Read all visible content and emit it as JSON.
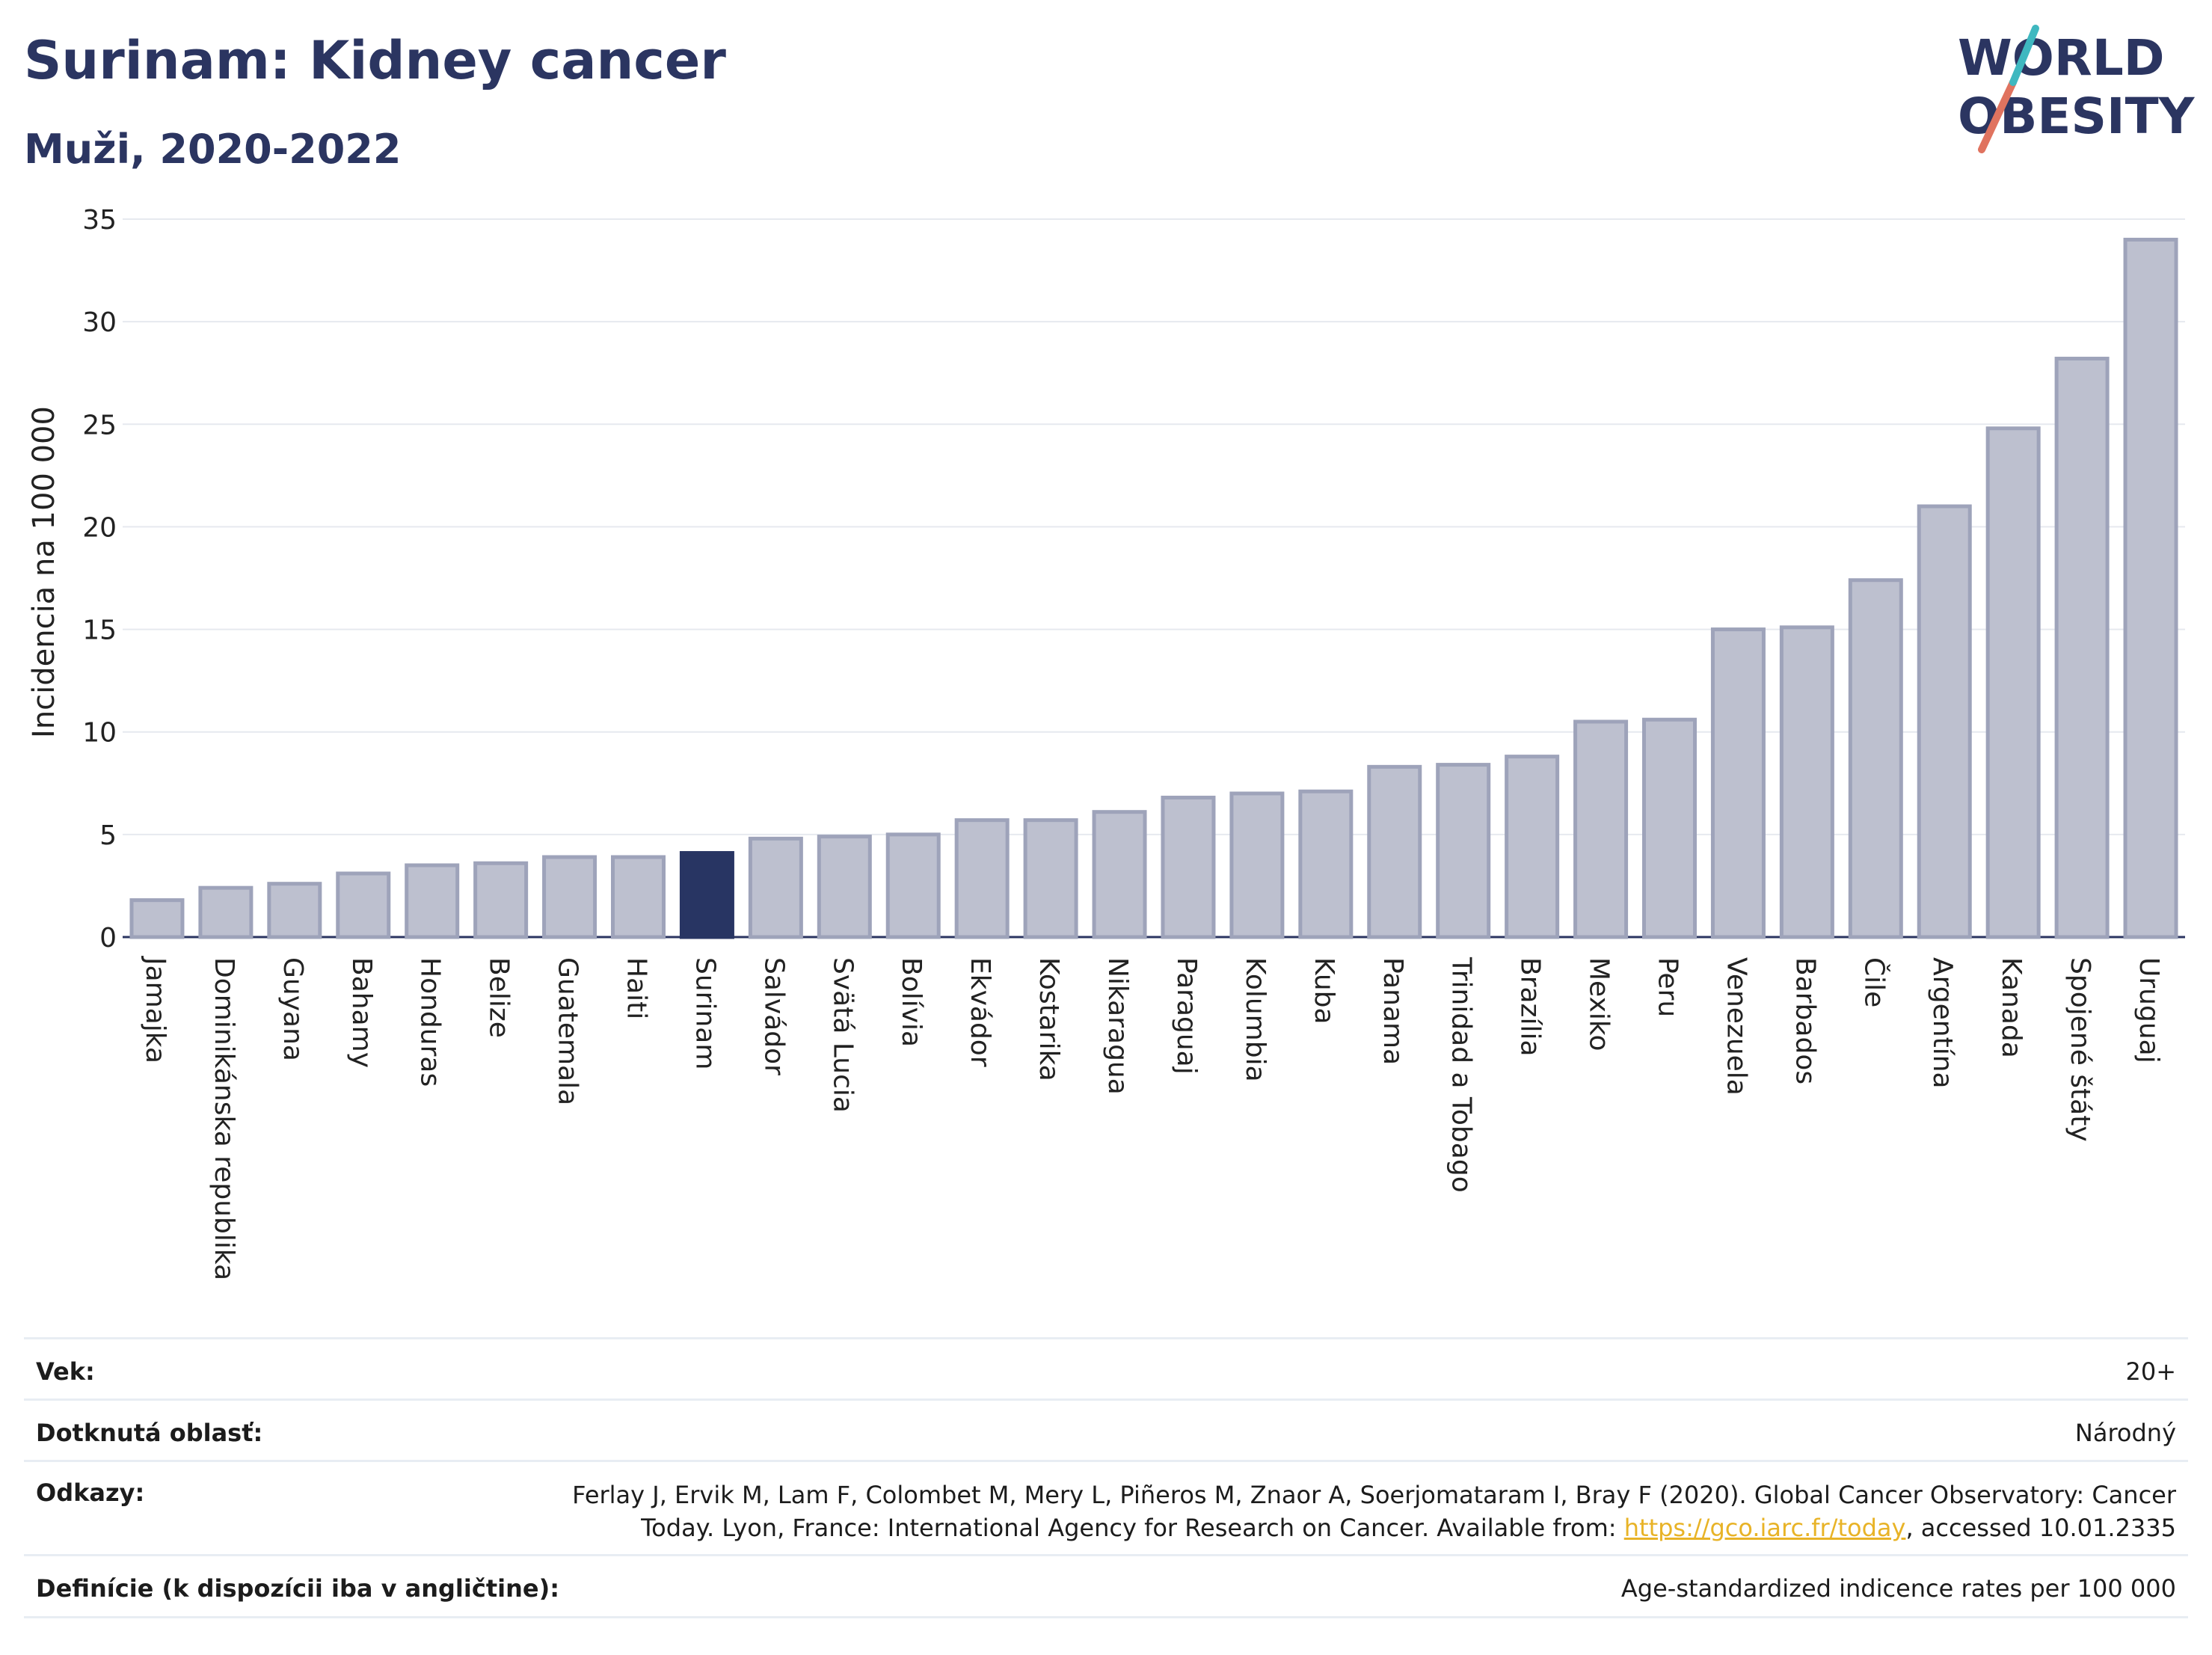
{
  "title": "Surinam: Kidney cancer",
  "subtitle": "Muži, 2020-2022",
  "logo": {
    "line1": "WORLD",
    "line2": "OBESITY"
  },
  "colors": {
    "navy": "#2b3561",
    "bar": "#bdc0cf",
    "bar_edge": "#9ea3ba",
    "highlight": "#283563",
    "accent": "#e8b327",
    "logo_red": "#e0735f",
    "logo_teal": "#3fb8c0"
  },
  "chart_data": {
    "type": "bar",
    "ylabel": "Incidencia na 100 000",
    "xlabel": "",
    "ylim": [
      0,
      35
    ],
    "yticks": [
      0,
      5,
      10,
      15,
      20,
      25,
      30,
      35
    ],
    "grid": true,
    "highlight": "Surinam",
    "categories": [
      "Jamajka",
      "Dominikánska republika",
      "Guyana",
      "Bahamy",
      "Honduras",
      "Belize",
      "Guatemala",
      "Haiti",
      "Surinam",
      "Salvádor",
      "Svätá Lucia",
      "Bolívia",
      "Ekvádor",
      "Kostarika",
      "Nikaragua",
      "Paraguaj",
      "Kolumbia",
      "Kuba",
      "Panama",
      "Trinidad a Tobago",
      "Brazília",
      "Mexiko",
      "Peru",
      "Venezuela",
      "Barbados",
      "Čile",
      "Argentína",
      "Kanada",
      "Spojené štáty",
      "Uruguaj"
    ],
    "values": [
      1.8,
      2.4,
      2.6,
      3.1,
      3.5,
      3.6,
      3.9,
      3.9,
      4.1,
      4.8,
      4.9,
      5.0,
      5.7,
      5.7,
      6.1,
      6.8,
      7.0,
      7.1,
      8.3,
      8.4,
      8.8,
      10.5,
      10.6,
      15.0,
      15.1,
      17.4,
      21.0,
      24.8,
      28.2,
      34.0
    ]
  },
  "meta": {
    "age_label": "Vek:",
    "age_value": "20+",
    "area_label": "Dotknutá oblasť:",
    "area_value": "Národný",
    "refs_label": "Odkazy:",
    "refs_line1": "Ferlay J, Ervik M, Lam F, Colombet M, Mery L, Piñeros M, Znaor A, Soerjomataram I, Bray F (2020). Global Cancer Observatory: Cancer",
    "refs_line2_pre": "Today. Lyon, France: International Agency for Research on Cancer. Available from: ",
    "refs_link": "https://gco.iarc.fr/today",
    "refs_line2_post": ", accessed 10.01.2335",
    "def_label": "Definície (k dispozícii iba v angličtine):",
    "def_value": "Age-standardized indicence rates per 100 000"
  }
}
